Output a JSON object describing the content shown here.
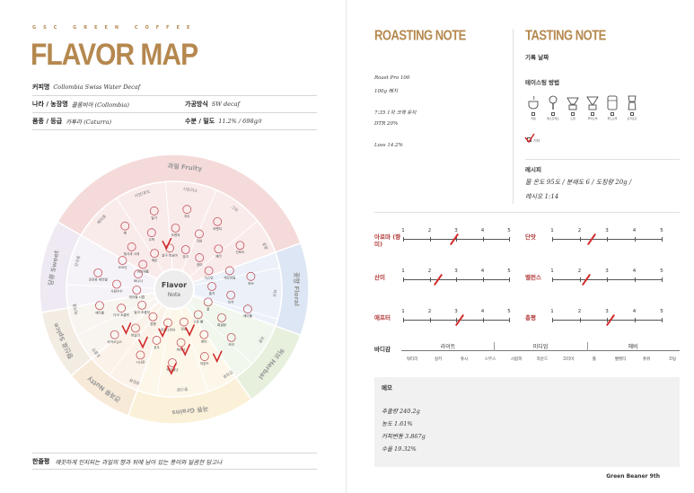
{
  "left": {
    "brand": "GSC GREEN COFFEE",
    "title": "FLAVOR MAP",
    "coffee_name_label": "커피명",
    "coffee_name": "Collombia Swiss Water Decaf",
    "country_label": "나라 / 농장명",
    "country": "콜롬비아 (Collombia)",
    "process_label": "가공방식",
    "process": "SW decaf",
    "variety_label": "품종 / 등급",
    "variety": "카투라 (Caturra)",
    "moisture_label": "수분 / 밀도",
    "moisture": "11.2% / 698g/ℓ",
    "summary_label": "한줄평",
    "summary": "깨끗하게 인지되는 과일의 향과 뒤에 남아 있는 풍미와 달콤한 담고나"
  },
  "wheel": {
    "center": [
      "Flavor",
      "Note"
    ],
    "categories": [
      {
        "label": "과일 Fruity",
        "color": "#f5dada"
      },
      {
        "label": "꽃향 Floral",
        "color": "#dde6f4"
      },
      {
        "label": "허브 Herbal",
        "color": "#e6f0dc"
      },
      {
        "label": "곡류 Grains",
        "color": "#fbf1d8"
      },
      {
        "label": "견과류 Nutty",
        "color": "#f7ead9"
      },
      {
        "label": "향신료 Spice",
        "color": "#f3ece3"
      },
      {
        "label": "당류 Sweet",
        "color": "#efe9f3"
      }
    ],
    "outer_labels": [
      "베리류",
      "서양/포도",
      "시트러스",
      "그외",
      "꽃향",
      "허브",
      "곡류",
      "견과류",
      "향신료",
      "설탕류",
      "초콜릿",
      "캐러멜",
      "당과류"
    ],
    "items": [
      "파인애플",
      "청사과 사과",
      "배",
      "레몬",
      "수박",
      "딸기",
      "살구 복숭아",
      "오렌지",
      "자두",
      "망고",
      "라임",
      "라벤더",
      "장미",
      "체리",
      "건포도",
      "자스민",
      "캐모마일",
      "허브",
      "홍차",
      "녹차",
      "메이플",
      "꿀",
      "흑설탕",
      "보리",
      "구운 빵",
      "현미",
      "아몬드",
      "땅콩",
      "캐슈넛",
      "헤이즐넛",
      "마카다미아",
      "호두",
      "시나몬",
      "정향",
      "바닐라",
      "카카오닙스",
      "밀크 초콜릿",
      "다크 초콜릿",
      "캐러멜",
      "캐러멜 시럽",
      "사탕수수",
      "견과류 캐러멜",
      "바나나",
      "코코넛"
    ],
    "marks": 8
  },
  "right": {
    "roasting_title": "ROASTING NOTE",
    "tasting_title": "TASTING NOTE",
    "roaster": "Roast Pro 100",
    "batch": "100g 배치",
    "first_crack": "7:35 1차 크랙 유지",
    "dtr": "DTR 20%",
    "loss": "Loss 14.2%",
    "record_date_label": "기록 날짜",
    "method_label": "테이스팅 방법",
    "tools": [
      "커핑",
      "에스프레소",
      "드립",
      "푸어오버",
      "콜드브루",
      "모카포트"
    ],
    "other": "기타",
    "recipe_label": "레시피",
    "recipe_line1": "물 온도 95도 / 분쇄도 6 / 도징량 20g /",
    "recipe_line2": "레시오 1:14",
    "sliders": [
      {
        "label": "아로마 (향미)",
        "value": "2.9"
      },
      {
        "label": "단맛",
        "value": "2.4"
      },
      {
        "label": "산미",
        "value": "2.3"
      },
      {
        "label": "밸런스",
        "value": "2.2"
      },
      {
        "label": "애프터",
        "value": "3.1"
      },
      {
        "label": "총평",
        "value": "3.1"
      }
    ],
    "ticks": [
      "1",
      "2",
      "3",
      "4",
      "5"
    ],
    "body_label": "바디감",
    "body_groups": [
      "라이트",
      "미디엄",
      "헤비"
    ],
    "body_items": [
      "워터리",
      "실키",
      "쥬시",
      "스무스",
      "시럽피",
      "라운드",
      "크리미",
      "툴",
      "벨벳티",
      "츄위",
      "코팅"
    ],
    "memo_label": "메모",
    "memo_lines": [
      "추출량 240.2g",
      "농도 1.61%",
      "커피변동 3.867g",
      "수율 19.32%"
    ],
    "footer": "Green Beaner 9th"
  }
}
